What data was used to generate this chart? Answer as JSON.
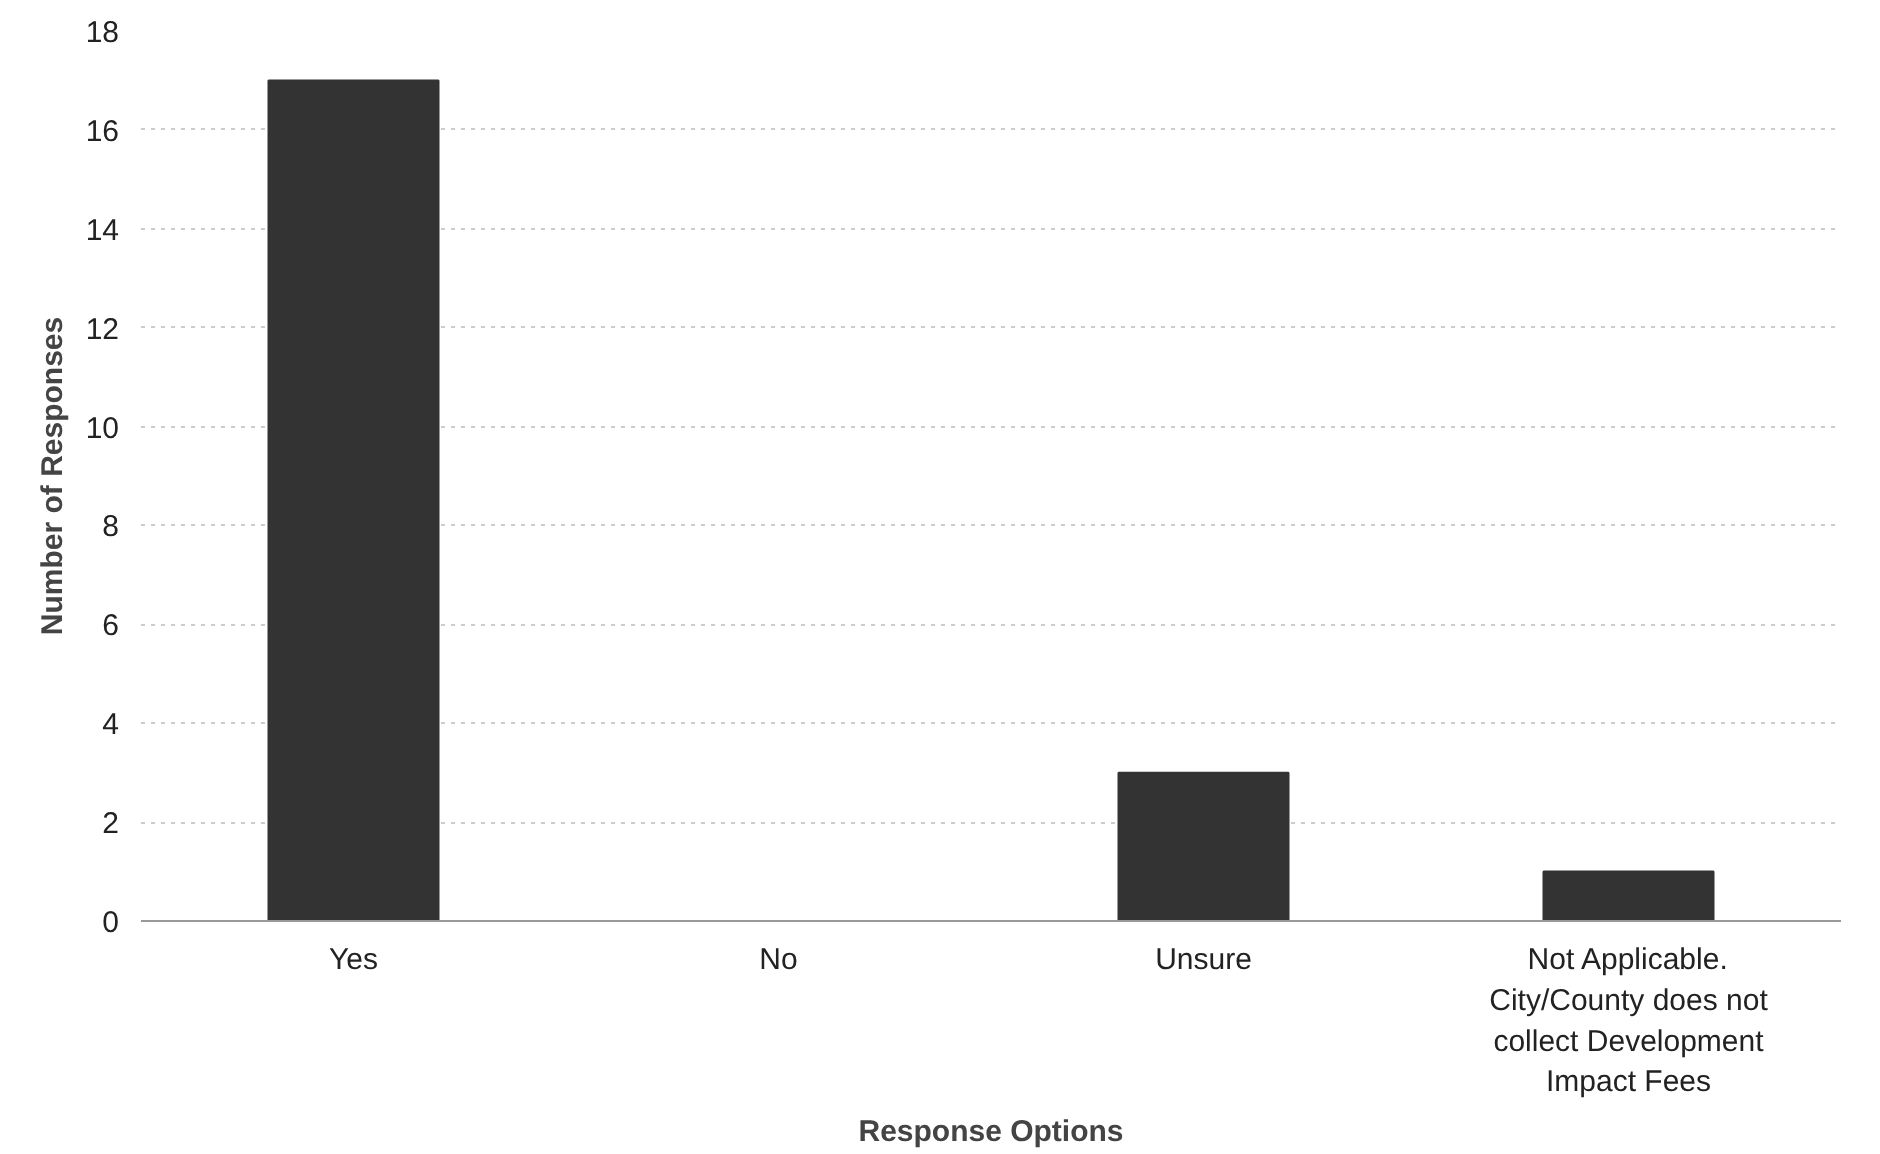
{
  "chart_data": {
    "type": "bar",
    "xlabel": "Response Options",
    "ylabel": "Number of Responses",
    "categories": [
      "Yes",
      "No",
      "Unsure",
      "Not Applicable. City/County does not collect Development Impact Fees"
    ],
    "values": [
      17,
      0,
      3,
      1
    ],
    "color": "#333333",
    "ylim": [
      0,
      18
    ],
    "yticks": [
      0,
      2,
      4,
      6,
      8,
      10,
      12,
      14,
      16,
      18
    ],
    "grid": "y"
  }
}
